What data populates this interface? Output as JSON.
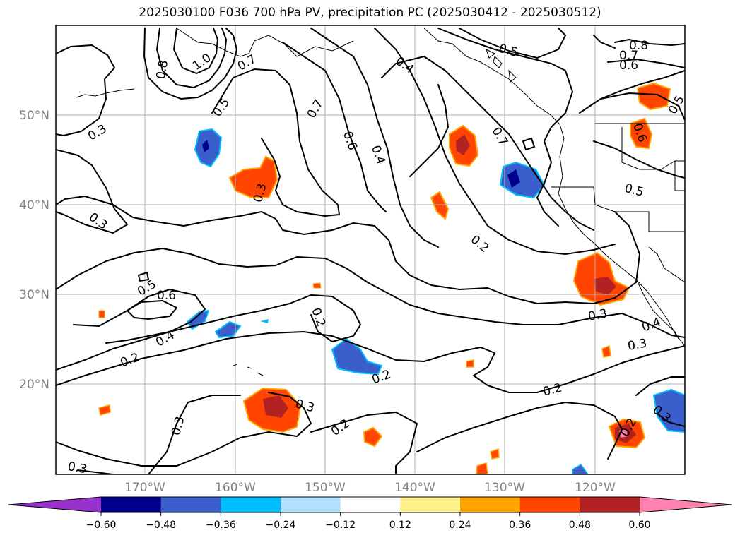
{
  "title": "2025030100 F036 700 hPa PV, precipitation PC (2025030412 - 2025030512)",
  "lat_labels": [
    "50°N",
    "40°N",
    "30°N",
    "20°N"
  ],
  "lon_labels": [
    "170°W",
    "160°W",
    "150°W",
    "140°W",
    "130°W",
    "120°W"
  ],
  "colorbar": {
    "ticks": [
      "−0.60",
      "−0.48",
      "−0.36",
      "−0.24",
      "−0.12",
      "0.12",
      "0.24",
      "0.36",
      "0.48",
      "0.60"
    ],
    "colors": [
      "#9932cc",
      "#00008b",
      "#3a5fcd",
      "#00bfff",
      "#b0e2ff",
      "#ffffff",
      "#fff08c",
      "#ffa500",
      "#ff4500",
      "#b22222",
      "#ff83b0"
    ]
  },
  "contour_labels": [
    "0.8",
    "1.0",
    "0.7",
    "0.5",
    "0.3",
    "0.7",
    "0.6",
    "0.4",
    "0.4",
    "0.7",
    "0.5",
    "0.8",
    "0.7",
    "0.6",
    "0.5",
    "0.6",
    "0.5",
    "0.3",
    "0.3",
    "0.2",
    "0.5",
    "0.6",
    "0.4",
    "0.2",
    "0.2",
    "0.2",
    "0.3",
    "0.3",
    "0.2",
    "0.3",
    "0.4",
    "0.3",
    "0.2",
    "0.3",
    "0.2",
    "0.3"
  ],
  "colors": {
    "frame": "#000000",
    "grid": "#b0b0b0",
    "coastline": "#000000"
  }
}
